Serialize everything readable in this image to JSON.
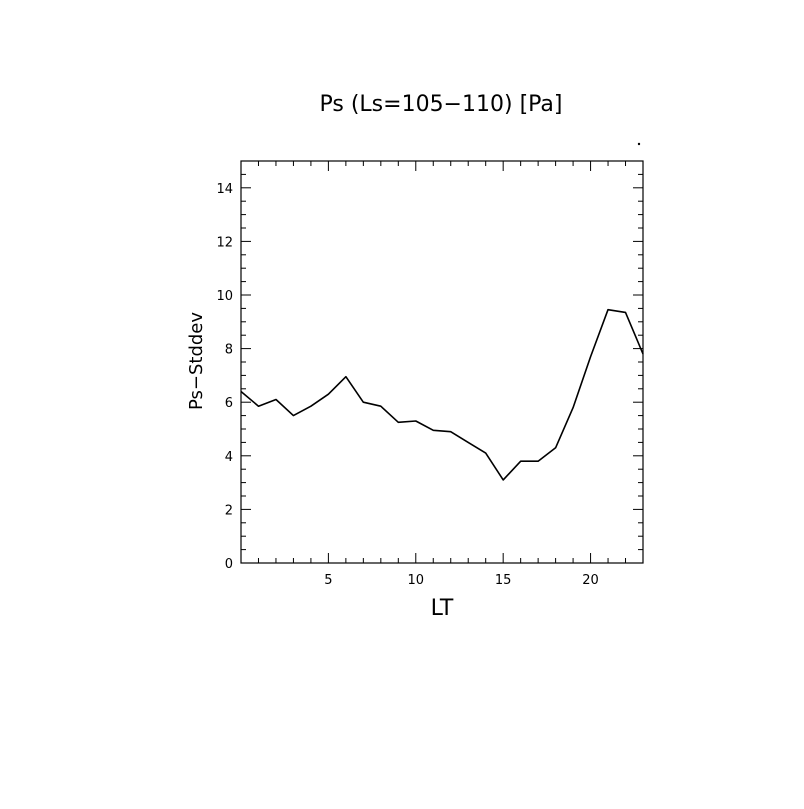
{
  "chart_data": {
    "type": "line",
    "title": "Ps (Ls=105−110) [Pa]",
    "xlabel": "LT",
    "ylabel": "Ps−Stddev",
    "xlim": [
      0,
      23
    ],
    "ylim": [
      0,
      15
    ],
    "x_ticks": [
      5,
      10,
      15,
      20
    ],
    "x_tick_labels": [
      "5",
      "10",
      "15",
      "20"
    ],
    "y_ticks": [
      0,
      2,
      4,
      6,
      8,
      10,
      12,
      14
    ],
    "y_tick_labels": [
      "0",
      "2",
      "4",
      "6",
      "8",
      "10",
      "12",
      "14"
    ],
    "grid": false,
    "series": [
      {
        "color": "#000000",
        "x": [
          0,
          1,
          2,
          3,
          4,
          5,
          6,
          7,
          8,
          9,
          10,
          11,
          12,
          13,
          14,
          15,
          16,
          17,
          18,
          19,
          20,
          21,
          22,
          23
        ],
        "values": [
          6.4,
          5.85,
          6.1,
          5.5,
          5.85,
          6.3,
          6.95,
          6.0,
          5.85,
          5.25,
          5.3,
          4.95,
          4.9,
          4.5,
          4.1,
          3.1,
          3.8,
          3.8,
          4.3,
          5.8,
          7.7,
          9.45,
          9.35,
          7.8
        ]
      }
    ]
  }
}
